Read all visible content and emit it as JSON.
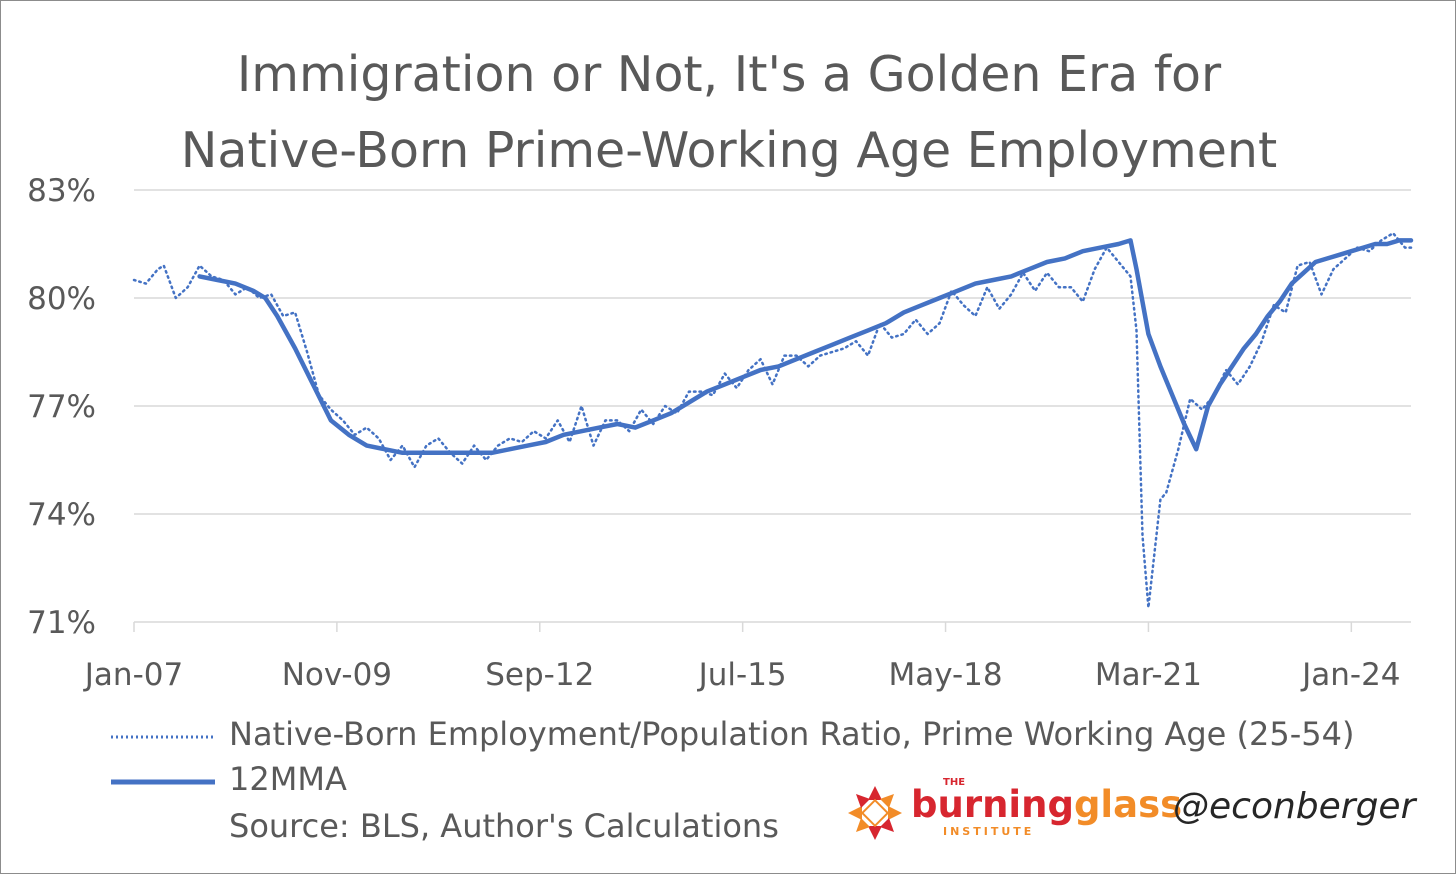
{
  "chart_data": {
    "type": "line",
    "title_line1": "Immigration or Not, It's a Golden Era for",
    "title_line2": "Native-Born Prime-Working Age Employment",
    "ylim": [
      71,
      83
    ],
    "yticks": [
      "83%",
      "80%",
      "77%",
      "74%",
      "71%"
    ],
    "ytick_values": [
      83,
      80,
      77,
      74,
      71
    ],
    "xtick_labels": [
      "Jan-07",
      "Nov-09",
      "Sep-12",
      "Jul-15",
      "May-18",
      "Mar-21",
      "Jan-24"
    ],
    "xtick_indices": [
      0,
      34,
      68,
      102,
      136,
      170,
      204
    ],
    "n_months": 214,
    "grid": true,
    "legend_position": "bottom",
    "series": [
      {
        "name": "Native-Born Employment/Population Ratio, Prime Working Age (25-54)",
        "style": "dotted",
        "color": "#4472c4",
        "points": [
          [
            0,
            80.5
          ],
          [
            2,
            80.4
          ],
          [
            4,
            80.8
          ],
          [
            5,
            80.9
          ],
          [
            7,
            80.0
          ],
          [
            9,
            80.3
          ],
          [
            11,
            80.9
          ],
          [
            13,
            80.6
          ],
          [
            15,
            80.5
          ],
          [
            17,
            80.1
          ],
          [
            19,
            80.3
          ],
          [
            21,
            80.0
          ],
          [
            23,
            80.1
          ],
          [
            25,
            79.5
          ],
          [
            27,
            79.6
          ],
          [
            29,
            78.5
          ],
          [
            31,
            77.3
          ],
          [
            33,
            76.9
          ],
          [
            35,
            76.6
          ],
          [
            37,
            76.2
          ],
          [
            39,
            76.4
          ],
          [
            41,
            76.1
          ],
          [
            43,
            75.5
          ],
          [
            45,
            75.9
          ],
          [
            47,
            75.3
          ],
          [
            49,
            75.9
          ],
          [
            51,
            76.1
          ],
          [
            53,
            75.7
          ],
          [
            55,
            75.4
          ],
          [
            57,
            75.9
          ],
          [
            59,
            75.5
          ],
          [
            61,
            75.9
          ],
          [
            63,
            76.1
          ],
          [
            65,
            76.0
          ],
          [
            67,
            76.3
          ],
          [
            69,
            76.1
          ],
          [
            71,
            76.6
          ],
          [
            73,
            76.0
          ],
          [
            75,
            77.0
          ],
          [
            77,
            75.9
          ],
          [
            79,
            76.6
          ],
          [
            81,
            76.6
          ],
          [
            83,
            76.3
          ],
          [
            85,
            76.9
          ],
          [
            87,
            76.5
          ],
          [
            89,
            77.0
          ],
          [
            91,
            76.8
          ],
          [
            93,
            77.4
          ],
          [
            95,
            77.4
          ],
          [
            97,
            77.3
          ],
          [
            99,
            77.9
          ],
          [
            101,
            77.5
          ],
          [
            103,
            78.0
          ],
          [
            105,
            78.3
          ],
          [
            107,
            77.6
          ],
          [
            109,
            78.4
          ],
          [
            111,
            78.4
          ],
          [
            113,
            78.1
          ],
          [
            115,
            78.4
          ],
          [
            117,
            78.5
          ],
          [
            119,
            78.6
          ],
          [
            121,
            78.8
          ],
          [
            123,
            78.4
          ],
          [
            125,
            79.3
          ],
          [
            127,
            78.9
          ],
          [
            129,
            79.0
          ],
          [
            131,
            79.4
          ],
          [
            133,
            79.0
          ],
          [
            135,
            79.3
          ],
          [
            137,
            80.2
          ],
          [
            139,
            79.8
          ],
          [
            141,
            79.5
          ],
          [
            143,
            80.3
          ],
          [
            145,
            79.7
          ],
          [
            147,
            80.1
          ],
          [
            149,
            80.7
          ],
          [
            151,
            80.2
          ],
          [
            153,
            80.7
          ],
          [
            155,
            80.3
          ],
          [
            157,
            80.3
          ],
          [
            159,
            79.9
          ],
          [
            161,
            80.8
          ],
          [
            163,
            81.4
          ],
          [
            165,
            81.0
          ],
          [
            167,
            80.6
          ],
          [
            168,
            79.1
          ],
          [
            169,
            73.4
          ],
          [
            170,
            71.4
          ],
          [
            172,
            74.4
          ],
          [
            173,
            74.6
          ],
          [
            175,
            75.8
          ],
          [
            177,
            77.2
          ],
          [
            179,
            76.9
          ],
          [
            181,
            77.3
          ],
          [
            183,
            78.0
          ],
          [
            185,
            77.6
          ],
          [
            187,
            78.1
          ],
          [
            189,
            78.8
          ],
          [
            191,
            79.8
          ],
          [
            193,
            79.6
          ],
          [
            195,
            80.9
          ],
          [
            197,
            81.0
          ],
          [
            199,
            80.1
          ],
          [
            201,
            80.8
          ],
          [
            203,
            81.1
          ],
          [
            205,
            81.4
          ],
          [
            207,
            81.3
          ],
          [
            209,
            81.6
          ],
          [
            211,
            81.8
          ],
          [
            213,
            81.4
          ],
          [
            214,
            81.4
          ]
        ]
      },
      {
        "name": "12MMA",
        "style": "solid",
        "color": "#4472c4",
        "points": [
          [
            11,
            80.6
          ],
          [
            14,
            80.5
          ],
          [
            17,
            80.4
          ],
          [
            20,
            80.2
          ],
          [
            22,
            80.0
          ],
          [
            24,
            79.5
          ],
          [
            27,
            78.6
          ],
          [
            30,
            77.6
          ],
          [
            33,
            76.6
          ],
          [
            36,
            76.2
          ],
          [
            39,
            75.9
          ],
          [
            42,
            75.8
          ],
          [
            45,
            75.7
          ],
          [
            48,
            75.7
          ],
          [
            51,
            75.7
          ],
          [
            54,
            75.7
          ],
          [
            57,
            75.7
          ],
          [
            60,
            75.7
          ],
          [
            63,
            75.8
          ],
          [
            66,
            75.9
          ],
          [
            69,
            76.0
          ],
          [
            72,
            76.2
          ],
          [
            75,
            76.3
          ],
          [
            78,
            76.4
          ],
          [
            81,
            76.5
          ],
          [
            84,
            76.4
          ],
          [
            87,
            76.6
          ],
          [
            90,
            76.8
          ],
          [
            93,
            77.1
          ],
          [
            96,
            77.4
          ],
          [
            99,
            77.6
          ],
          [
            102,
            77.8
          ],
          [
            105,
            78.0
          ],
          [
            108,
            78.1
          ],
          [
            111,
            78.3
          ],
          [
            114,
            78.5
          ],
          [
            117,
            78.7
          ],
          [
            120,
            78.9
          ],
          [
            123,
            79.1
          ],
          [
            126,
            79.3
          ],
          [
            129,
            79.6
          ],
          [
            132,
            79.8
          ],
          [
            135,
            80.0
          ],
          [
            138,
            80.2
          ],
          [
            141,
            80.4
          ],
          [
            144,
            80.5
          ],
          [
            147,
            80.6
          ],
          [
            150,
            80.8
          ],
          [
            153,
            81.0
          ],
          [
            156,
            81.1
          ],
          [
            159,
            81.3
          ],
          [
            162,
            81.4
          ],
          [
            165,
            81.5
          ],
          [
            167,
            81.6
          ],
          [
            168,
            80.8
          ],
          [
            170,
            79.0
          ],
          [
            172,
            78.1
          ],
          [
            174,
            77.3
          ],
          [
            176,
            76.5
          ],
          [
            178,
            75.8
          ],
          [
            180,
            77.0
          ],
          [
            182,
            77.6
          ],
          [
            184,
            78.1
          ],
          [
            186,
            78.6
          ],
          [
            188,
            79.0
          ],
          [
            190,
            79.5
          ],
          [
            192,
            79.9
          ],
          [
            194,
            80.4
          ],
          [
            196,
            80.7
          ],
          [
            198,
            81.0
          ],
          [
            200,
            81.1
          ],
          [
            202,
            81.2
          ],
          [
            204,
            81.3
          ],
          [
            206,
            81.4
          ],
          [
            208,
            81.5
          ],
          [
            210,
            81.5
          ],
          [
            212,
            81.6
          ],
          [
            214,
            81.6
          ]
        ]
      }
    ]
  },
  "legend": {
    "dotted_label": "Native-Born Employment/Population Ratio, Prime Working Age (25-54)",
    "solid_label": "12MMA"
  },
  "source": "Source: BLS, Author's Calculations",
  "logo": {
    "the": "THE",
    "burning": "burning",
    "glass": "glass",
    "institute": "INSTITUTE",
    "colors": {
      "burning": "#d7262f",
      "glass": "#f28c28"
    }
  },
  "handle": "@econberger"
}
